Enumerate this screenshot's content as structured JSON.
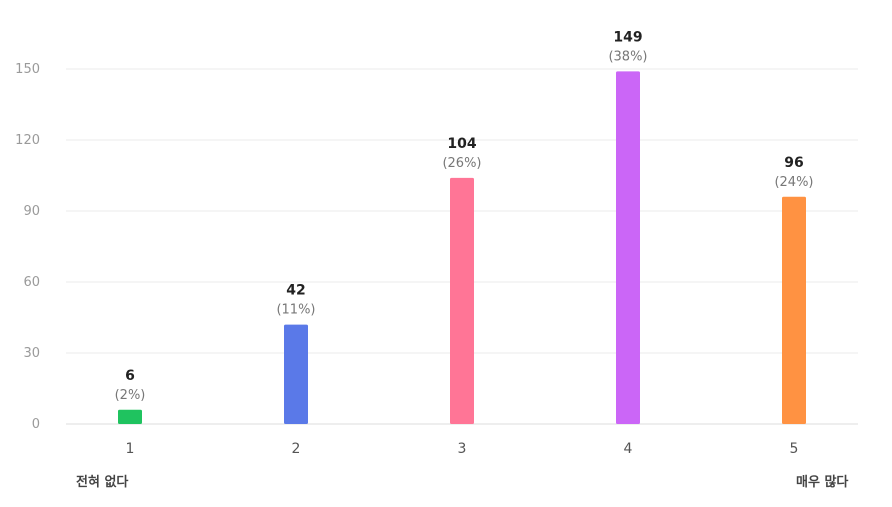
{
  "chart_data": {
    "type": "bar",
    "categories": [
      "1",
      "2",
      "3",
      "4",
      "5"
    ],
    "values": [
      6,
      42,
      104,
      149,
      96
    ],
    "percent_labels": [
      "(2%)",
      "(11%)",
      "(26%)",
      "(38%)",
      "(24%)"
    ],
    "colors": [
      "#1fc35f",
      "#5a79e8",
      "#ff7596",
      "#cb66f7",
      "#ff9242"
    ],
    "yticks": [
      0,
      30,
      60,
      90,
      120,
      150
    ],
    "ylim": [
      0,
      150
    ],
    "grid": true,
    "title": "",
    "xlabel": "",
    "ylabel": ""
  },
  "scale": {
    "min_label": "전혀 없다",
    "max_label": "매우 많다"
  }
}
